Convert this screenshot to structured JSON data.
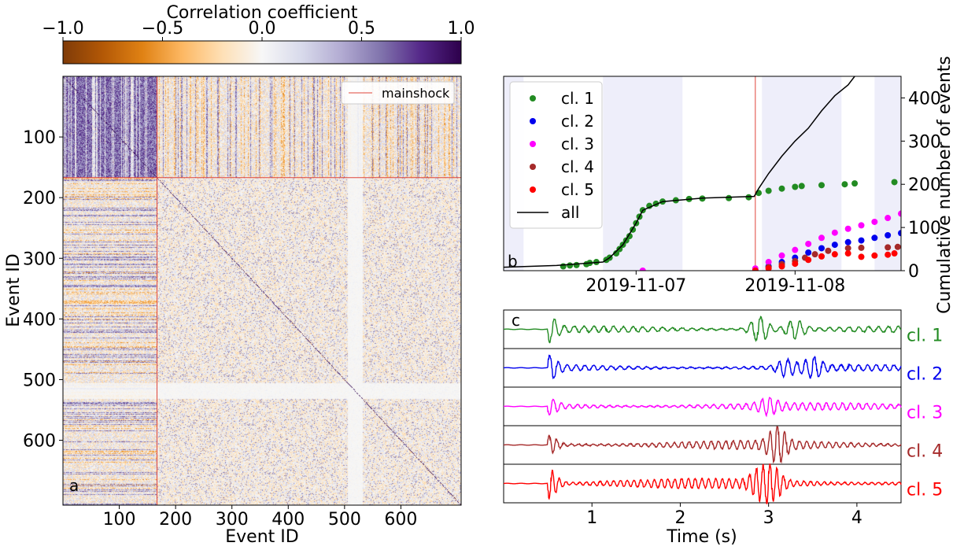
{
  "colors": {
    "cmap_neg": "#7f3b08",
    "cmap_mid": "#f7f7f7",
    "cmap_pos": "#2d004b",
    "mainshock": "#e0453a",
    "shade": "#eeeefa",
    "all_line": "#000000"
  },
  "chart_data": [
    {
      "panel": "colorbar",
      "type": "heatmap",
      "title": "Correlation coefficient",
      "range": [
        -1.0,
        1.0
      ],
      "ticks": [
        -1.0,
        -0.5,
        0.0,
        0.5,
        1.0
      ],
      "tick_labels": [
        "−1.0",
        "−0.5",
        "0.0",
        "0.5",
        "1.0"
      ],
      "colormap": [
        "#7f3b08",
        "#b35806",
        "#e08214",
        "#fdb863",
        "#fee0b6",
        "#f7f7f7",
        "#d8daeb",
        "#b2abd2",
        "#8073ac",
        "#542788",
        "#2d004b"
      ]
    },
    {
      "panel": "a",
      "panel_label": "a",
      "type": "heatmap",
      "xlabel": "Event ID",
      "ylabel": "Event ID",
      "n_events": 707,
      "xlim": [
        0,
        707
      ],
      "ylim": [
        707,
        0
      ],
      "xticks": [
        100,
        200,
        300,
        400,
        500,
        600
      ],
      "yticks": [
        100,
        200,
        300,
        400,
        500,
        600
      ],
      "mainshock_event": 167,
      "legend": [
        "mainshock"
      ],
      "legend_loc": "upper right",
      "description_blocks": {
        "pre_mainshock_block": [
          0,
          167
        ],
        "pale_band": [
          505,
          530
        ]
      }
    },
    {
      "panel": "b",
      "panel_label": "b",
      "type": "scatter",
      "xlim": [
        "2019-11-06T04:00",
        "2019-11-08T16:00"
      ],
      "xticks": [
        "2019-11-07",
        "2019-11-08"
      ],
      "ylabel": "Cumulative number of events",
      "ylim": [
        0,
        450
      ],
      "yticks": [
        0,
        100,
        200,
        300,
        400
      ],
      "mainshock_time": "2019-11-07T18:00",
      "night_shading": [
        [
          "2019-11-06T04:00",
          "2019-11-06T07:00"
        ],
        [
          "2019-11-06T19:00",
          "2019-11-07T07:00"
        ],
        [
          "2019-11-07T19:00",
          "2019-11-08T07:00"
        ],
        [
          "2019-11-08T12:00",
          "2019-11-08T16:00"
        ]
      ],
      "legend_loc": "upper left",
      "series": [
        {
          "name": "cl. 1",
          "color": "#228b22",
          "points": [
            [
              "2019-11-06T13:00",
              10
            ],
            [
              "2019-11-06T14:00",
              12
            ],
            [
              "2019-11-06T15:00",
              13
            ],
            [
              "2019-11-06T16:30",
              15
            ],
            [
              "2019-11-06T17:00",
              18
            ],
            [
              "2019-11-06T18:00",
              20
            ],
            [
              "2019-11-06T19:30",
              25
            ],
            [
              "2019-11-06T20:00",
              30
            ],
            [
              "2019-11-06T21:00",
              40
            ],
            [
              "2019-11-06T21:30",
              50
            ],
            [
              "2019-11-06T22:00",
              60
            ],
            [
              "2019-11-06T22:30",
              70
            ],
            [
              "2019-11-06T23:00",
              80
            ],
            [
              "2019-11-06T23:30",
              95
            ],
            [
              "2019-11-07T00:00",
              110
            ],
            [
              "2019-11-07T00:30",
              125
            ],
            [
              "2019-11-07T01:00",
              140
            ],
            [
              "2019-11-07T02:00",
              150
            ],
            [
              "2019-11-07T03:00",
              155
            ],
            [
              "2019-11-07T04:00",
              160
            ],
            [
              "2019-11-07T06:00",
              163
            ],
            [
              "2019-11-07T08:00",
              166
            ],
            [
              "2019-11-07T10:00",
              167
            ],
            [
              "2019-11-07T14:00",
              168
            ],
            [
              "2019-11-07T17:00",
              170
            ],
            [
              "2019-11-07T18:30",
              180
            ],
            [
              "2019-11-07T20:00",
              185
            ],
            [
              "2019-11-07T22:00",
              190
            ],
            [
              "2019-11-08T00:00",
              194
            ],
            [
              "2019-11-08T01:00",
              196
            ],
            [
              "2019-11-08T04:00",
              198
            ],
            [
              "2019-11-08T07:30",
              200
            ],
            [
              "2019-11-08T09:00",
              202
            ],
            [
              "2019-11-08T15:00",
              205
            ]
          ]
        },
        {
          "name": "cl. 2",
          "color": "#0000ee",
          "points": [
            [
              "2019-11-07T18:00",
              0
            ],
            [
              "2019-11-07T20:00",
              10
            ],
            [
              "2019-11-07T22:00",
              20
            ],
            [
              "2019-11-08T00:00",
              30
            ],
            [
              "2019-11-08T02:00",
              42
            ],
            [
              "2019-11-08T04:00",
              52
            ],
            [
              "2019-11-08T06:00",
              60
            ],
            [
              "2019-11-08T08:00",
              66
            ],
            [
              "2019-11-08T10:00",
              70
            ],
            [
              "2019-11-08T12:00",
              76
            ],
            [
              "2019-11-08T14:00",
              82
            ],
            [
              "2019-11-08T16:00",
              87
            ]
          ]
        },
        {
          "name": "cl. 3",
          "color": "#ff00ff",
          "points": [
            [
              "2019-11-07T01:00",
              0
            ],
            [
              "2019-11-07T18:00",
              5
            ],
            [
              "2019-11-07T20:00",
              20
            ],
            [
              "2019-11-07T22:00",
              35
            ],
            [
              "2019-11-08T00:00",
              48
            ],
            [
              "2019-11-08T02:00",
              62
            ],
            [
              "2019-11-08T04:00",
              76
            ],
            [
              "2019-11-08T06:00",
              88
            ],
            [
              "2019-11-08T08:00",
              97
            ],
            [
              "2019-11-08T10:00",
              105
            ],
            [
              "2019-11-08T12:00",
              113
            ],
            [
              "2019-11-08T14:00",
              122
            ],
            [
              "2019-11-08T16:00",
              132
            ]
          ]
        },
        {
          "name": "cl. 4",
          "color": "#a52a2a",
          "points": [
            [
              "2019-11-07T18:00",
              0
            ],
            [
              "2019-11-07T20:00",
              8
            ],
            [
              "2019-11-07T22:00",
              15
            ],
            [
              "2019-11-08T00:00",
              22
            ],
            [
              "2019-11-08T01:30",
              30
            ],
            [
              "2019-11-08T03:00",
              38
            ],
            [
              "2019-11-08T05:00",
              46
            ],
            [
              "2019-11-08T08:00",
              52
            ],
            [
              "2019-11-08T10:00",
              53
            ],
            [
              "2019-11-08T14:00",
              54
            ],
            [
              "2019-11-08T15:30",
              55
            ]
          ]
        },
        {
          "name": "cl. 5",
          "color": "#ff0000",
          "points": [
            [
              "2019-11-07T18:00",
              0
            ],
            [
              "2019-11-07T20:00",
              5
            ],
            [
              "2019-11-07T22:00",
              10
            ],
            [
              "2019-11-08T00:00",
              16
            ],
            [
              "2019-11-08T02:00",
              25
            ],
            [
              "2019-11-08T04:00",
              33
            ],
            [
              "2019-11-08T06:00",
              38
            ],
            [
              "2019-11-08T08:00",
              40
            ],
            [
              "2019-11-08T10:00",
              32
            ],
            [
              "2019-11-08T12:00",
              35
            ],
            [
              "2019-11-08T14:00",
              37
            ],
            [
              "2019-11-08T15:00",
              40
            ]
          ]
        },
        {
          "name": "all",
          "color": "#000000",
          "line": true,
          "points": [
            [
              "2019-11-06T04:00",
              8
            ],
            [
              "2019-11-06T12:00",
              12
            ],
            [
              "2019-11-06T19:00",
              20
            ],
            [
              "2019-11-06T20:00",
              30
            ],
            [
              "2019-11-06T22:00",
              60
            ],
            [
              "2019-11-07T00:00",
              110
            ],
            [
              "2019-11-07T01:00",
              140
            ],
            [
              "2019-11-07T04:00",
              160
            ],
            [
              "2019-11-07T10:00",
              168
            ],
            [
              "2019-11-07T17:50",
              172
            ],
            [
              "2019-11-07T18:30",
              190
            ],
            [
              "2019-11-07T20:00",
              225
            ],
            [
              "2019-11-07T22:00",
              265
            ],
            [
              "2019-11-08T00:00",
              300
            ],
            [
              "2019-11-08T02:00",
              330
            ],
            [
              "2019-11-08T04:00",
              370
            ],
            [
              "2019-11-08T06:00",
              405
            ],
            [
              "2019-11-08T08:00",
              430
            ],
            [
              "2019-11-08T09:00",
              450
            ]
          ]
        }
      ]
    },
    {
      "panel": "c",
      "panel_label": "c",
      "type": "line",
      "xlabel": "Time (s)",
      "xlim": [
        0,
        4.5
      ],
      "xticks": [
        1,
        2,
        3,
        4
      ],
      "onset_s": 0.5,
      "traces": [
        {
          "name": "cl. 1",
          "color": "#228b22",
          "bursts": [
            [
              0.5,
              0.9
            ],
            [
              2.9,
              1.0
            ],
            [
              3.3,
              0.7
            ]
          ],
          "noise": 0.25
        },
        {
          "name": "cl. 2",
          "color": "#0000ee",
          "bursts": [
            [
              0.5,
              0.8
            ],
            [
              3.2,
              0.6
            ],
            [
              3.5,
              0.7
            ]
          ],
          "noise": 0.25
        },
        {
          "name": "cl. 3",
          "color": "#ff00ff",
          "bursts": [
            [
              0.5,
              0.5
            ],
            [
              3.0,
              0.5
            ]
          ],
          "noise": 0.3
        },
        {
          "name": "cl. 4",
          "color": "#a52a2a",
          "bursts": [
            [
              0.5,
              0.7
            ],
            [
              3.1,
              1.2
            ]
          ],
          "noise": 0.35
        },
        {
          "name": "cl. 5",
          "color": "#ff0000",
          "bursts": [
            [
              0.5,
              1.2
            ],
            [
              2.9,
              0.9
            ],
            [
              3.05,
              1.1
            ]
          ],
          "noise": 0.4
        }
      ]
    }
  ]
}
